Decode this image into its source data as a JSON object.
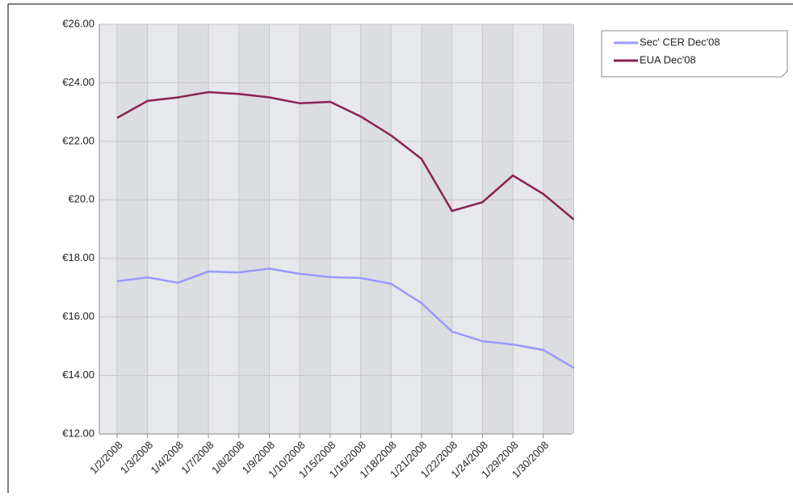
{
  "chart_data": {
    "type": "line",
    "categories": [
      "1/2/2008",
      "1/3/2008",
      "1/4/2008",
      "1/7/2008",
      "1/8/2008",
      "1/9/2008",
      "1/10/2008",
      "1/15/2008",
      "1/16/2008",
      "1/18/2008",
      "1/21/2008",
      "1/22/2008",
      "1/24/2008",
      "1/29/2008",
      "1/30/2008",
      null
    ],
    "series": [
      {
        "name": "Sec' CER Dec'08",
        "color": "#9999ff",
        "values": [
          17.22,
          17.35,
          17.17,
          17.55,
          17.52,
          17.65,
          17.47,
          17.36,
          17.33,
          17.13,
          16.47,
          15.5,
          15.17,
          15.06,
          14.87,
          14.26
        ]
      },
      {
        "name": "EUA Dec'08",
        "color": "#8b2252",
        "values": [
          22.8,
          23.38,
          23.5,
          23.68,
          23.62,
          23.5,
          23.3,
          23.35,
          22.85,
          22.2,
          21.4,
          19.62,
          19.92,
          20.83,
          20.2,
          19.33
        ]
      }
    ],
    "ylim": [
      12,
      26
    ],
    "yticks": [
      {
        "value": 12,
        "label": "€12.00"
      },
      {
        "value": 14,
        "label": "€14.00"
      },
      {
        "value": 16,
        "label": "€16.00"
      },
      {
        "value": 18,
        "label": "€18.00"
      },
      {
        "value": 20,
        "label": "€20.0"
      },
      {
        "value": 22,
        "label": "€22.00"
      },
      {
        "value": 24,
        "label": "€24.00"
      },
      {
        "value": 26,
        "label": "€26.00"
      }
    ],
    "grid": true
  }
}
